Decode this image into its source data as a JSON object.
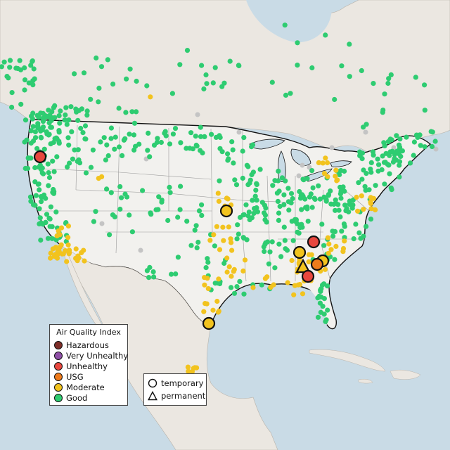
{
  "colors": {
    "water": "#c9dbe6",
    "land": "#ebe7e1",
    "us_land": "#f2f1ee",
    "hazardous": "#7e2e28",
    "very_unhealthy": "#8f4fa6",
    "unhealthy": "#e8473e",
    "usg": "#ee7b1c",
    "moderate": "#f2c31e",
    "good": "#2ecc71",
    "no_data": "#c4c4c4"
  },
  "legend": {
    "title": "Air Quality Index",
    "items": [
      {
        "key": "hazardous",
        "label": "Hazardous"
      },
      {
        "key": "very_unhealthy",
        "label": "Very Unhealthy"
      },
      {
        "key": "unhealthy",
        "label": "Unhealthy"
      },
      {
        "key": "usg",
        "label": "USG"
      },
      {
        "key": "moderate",
        "label": "Moderate"
      },
      {
        "key": "good",
        "label": "Good"
      }
    ]
  },
  "monitor_types": [
    {
      "key": "temporary",
      "label": "temporary",
      "shape": "circle"
    },
    {
      "key": "permanent",
      "label": "permanent",
      "shape": "triangle"
    }
  ],
  "highlighted_monitors": [
    {
      "region": "Washington",
      "category": "unhealthy",
      "type": "temporary"
    },
    {
      "region": "Kansas",
      "category": "moderate",
      "type": "temporary"
    },
    {
      "region": "Tennessee",
      "category": "unhealthy",
      "type": "temporary"
    },
    {
      "region": "Tennessee",
      "category": "moderate",
      "type": "temporary"
    },
    {
      "region": "North Carolina",
      "category": "moderate",
      "type": "temporary"
    },
    {
      "region": "Georgia",
      "category": "usg",
      "type": "temporary"
    },
    {
      "region": "Georgia",
      "category": "moderate",
      "type": "permanent"
    },
    {
      "region": "Georgia",
      "category": "unhealthy",
      "type": "temporary"
    },
    {
      "region": "Texas",
      "category": "moderate",
      "type": "temporary"
    }
  ]
}
